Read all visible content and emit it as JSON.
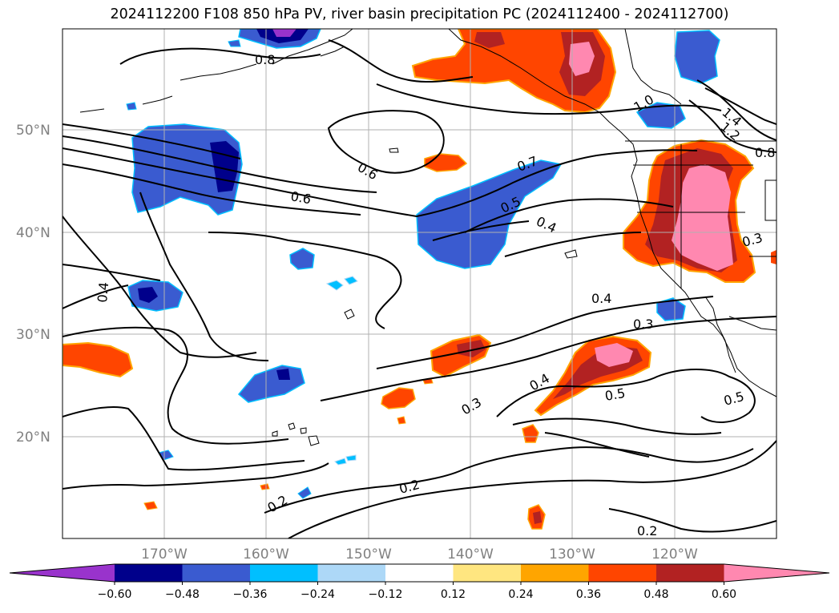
{
  "title": "2024112200 F108 850 hPa PV, river basin precipitation PC (2024112400 - 2024112700)",
  "map": {
    "lon_labels": [
      "170°W",
      "160°W",
      "150°W",
      "140°W",
      "130°W",
      "120°W"
    ],
    "lat_labels": [
      "50°N",
      "40°N",
      "30°N",
      "20°N"
    ],
    "colorbar": {
      "colors": [
        "#9933cc",
        "#00008b",
        "#3a5bd0",
        "#00bfff",
        "#add8f7",
        "#ffffff",
        "#ffe680",
        "#ffa500",
        "#ff4500",
        "#b22222",
        "#ff88b0"
      ],
      "ticks": [
        "−0.60",
        "−0.48",
        "−0.36",
        "−0.24",
        "−0.12",
        "0.12",
        "0.24",
        "0.36",
        "0.48",
        "0.60"
      ]
    },
    "contour_labels": [
      "0.8",
      "1.0",
      "1.4",
      "1.2",
      "0.8",
      "0.6",
      "0.6",
      "0.7",
      "0.5",
      "0.4",
      "0.4",
      "0.3",
      "0.4",
      "0.3",
      "0.4",
      "0.3",
      "0.5",
      "0.5",
      "0.2",
      "0.2",
      "0.2"
    ]
  }
}
